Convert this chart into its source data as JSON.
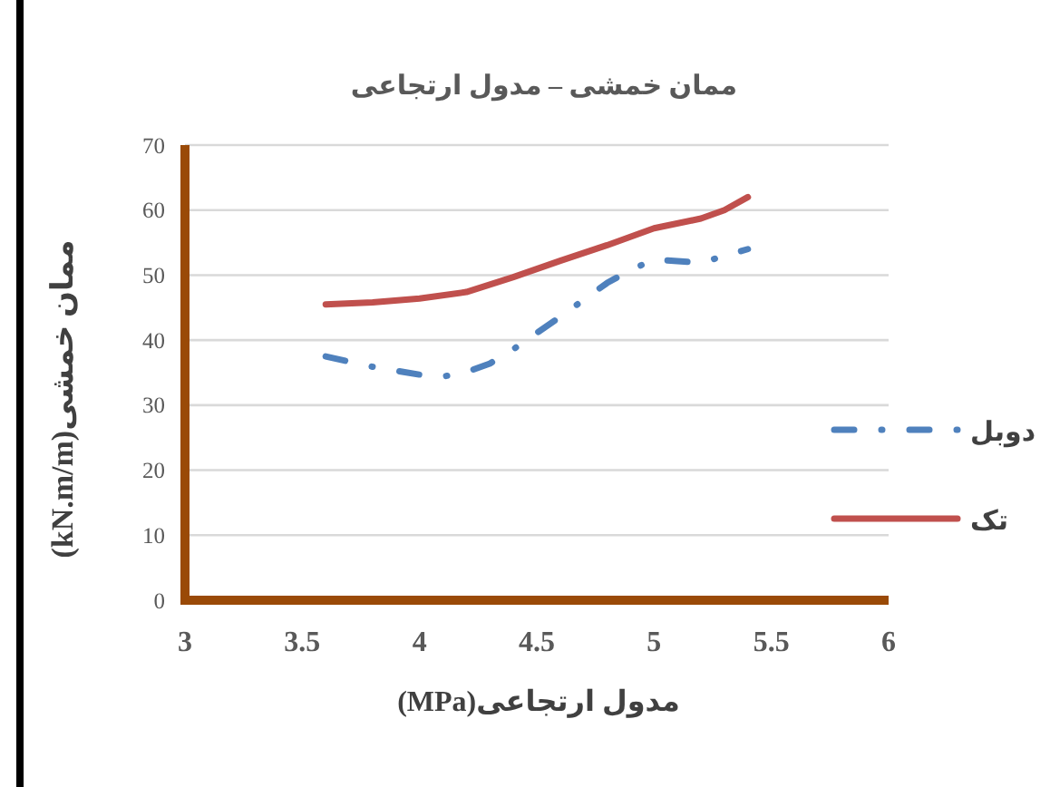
{
  "chart_data": {
    "type": "line",
    "title": "ممان خمشی – مدول ارتجاعی",
    "xlabel": "مدول ارتجاعی(MPa)",
    "ylabel": "ممان خمشی(kN.m/m)",
    "xlim": [
      3,
      6
    ],
    "xticks": [
      3,
      3.5,
      4,
      4.5,
      5,
      5.5,
      6
    ],
    "ylim": [
      0,
      70
    ],
    "yticks": [
      0,
      10,
      20,
      30,
      40,
      50,
      60,
      70
    ],
    "grid": "y",
    "legend": "right",
    "series": [
      {
        "name": "دوبل",
        "color": "#4f81bd",
        "line_style": "dashed",
        "x": [
          3.6,
          3.8,
          4.0,
          4.1,
          4.2,
          4.3,
          4.4,
          4.6,
          4.8,
          4.9,
          5.0,
          5.2,
          5.4
        ],
        "values": [
          37.5,
          35.9,
          34.7,
          34.4,
          35.1,
          36.4,
          38.6,
          43.6,
          48.8,
          50.8,
          52.4,
          51.9,
          54.0
        ]
      },
      {
        "name": "تک",
        "color": "#c0504d",
        "line_style": "solid",
        "x": [
          3.6,
          3.8,
          4.0,
          4.2,
          4.4,
          4.6,
          4.8,
          5.0,
          5.2,
          5.3,
          5.4
        ],
        "values": [
          45.5,
          45.8,
          46.4,
          47.4,
          49.7,
          52.2,
          54.6,
          57.2,
          58.7,
          60.0,
          62.0
        ]
      }
    ]
  }
}
